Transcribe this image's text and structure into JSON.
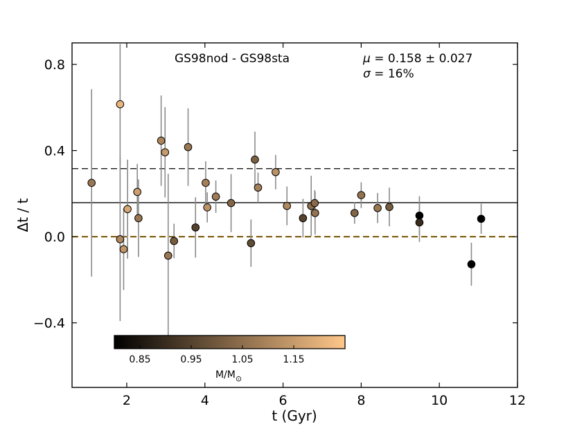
{
  "chart_data": {
    "type": "scatter",
    "annotation": "GS98nod - GS98sta",
    "stats": {
      "mu_symbol": "μ",
      "mu_text": " = 0.158 ± 0.027",
      "sigma_symbol": "σ",
      "sigma_text": " = 16%"
    },
    "xlabel": "t (Gyr)",
    "ylabel": "Δt / t",
    "xlim": [
      0.6,
      12.0
    ],
    "ylim": [
      -0.7,
      0.9
    ],
    "xticks": [
      2,
      4,
      6,
      8,
      10,
      12
    ],
    "yticks": [
      -0.4,
      0.0,
      0.4,
      0.8
    ],
    "ytick_labels": [
      "−0.4",
      "0.0",
      "0.4",
      "0.8"
    ],
    "lines": {
      "mean": 0.158,
      "mean_plus_sigma": 0.316,
      "zero": 0.0
    },
    "colorbar": {
      "label": "M/M",
      "label_symbol": "⊙",
      "range": [
        0.8,
        1.25
      ],
      "ticks": [
        0.85,
        0.95,
        1.05,
        1.15
      ],
      "tick_labels": [
        "0.85",
        "0.95",
        "1.05",
        "1.15"
      ],
      "color_low": "#000000",
      "color_high": "#ffc78a"
    },
    "points": [
      {
        "x": 1.1,
        "y": 0.25,
        "err": 0.435,
        "mass": 1.07
      },
      {
        "x": 1.83,
        "y": 0.615,
        "err": 0.28,
        "mass": 1.21
      },
      {
        "x": 1.83,
        "y": -0.012,
        "err": 0.38,
        "mass": 1.11
      },
      {
        "x": 1.92,
        "y": -0.058,
        "err": 0.19,
        "mass": 1.14
      },
      {
        "x": 2.02,
        "y": 0.128,
        "err": 0.23,
        "mass": 1.18
      },
      {
        "x": 2.27,
        "y": 0.208,
        "err": 0.13,
        "mass": 1.16
      },
      {
        "x": 2.3,
        "y": 0.086,
        "err": 0.18,
        "mass": 1.07
      },
      {
        "x": 2.88,
        "y": 0.446,
        "err": 0.21,
        "mass": 1.1
      },
      {
        "x": 2.98,
        "y": 0.392,
        "err": 0.21,
        "mass": 1.15
      },
      {
        "x": 3.06,
        "y": -0.088,
        "err": 0.38,
        "mass": 1.07
      },
      {
        "x": 3.21,
        "y": -0.02,
        "err": 0.08,
        "mass": 1.01
      },
      {
        "x": 3.57,
        "y": 0.416,
        "err": 0.18,
        "mass": 1.07
      },
      {
        "x": 3.76,
        "y": 0.043,
        "err": 0.14,
        "mass": 0.95
      },
      {
        "x": 4.02,
        "y": 0.25,
        "err": 0.1,
        "mass": 1.09
      },
      {
        "x": 4.06,
        "y": 0.136,
        "err": 0.07,
        "mass": 1.13
      },
      {
        "x": 4.28,
        "y": 0.186,
        "err": 0.075,
        "mass": 1.08
      },
      {
        "x": 4.67,
        "y": 0.156,
        "err": 0.135,
        "mass": 1.03
      },
      {
        "x": 5.18,
        "y": -0.03,
        "err": 0.11,
        "mass": 0.97
      },
      {
        "x": 5.28,
        "y": 0.358,
        "err": 0.13,
        "mass": 1.02
      },
      {
        "x": 5.36,
        "y": 0.228,
        "err": 0.07,
        "mass": 1.09
      },
      {
        "x": 5.81,
        "y": 0.3,
        "err": 0.08,
        "mass": 1.13
      },
      {
        "x": 6.1,
        "y": 0.143,
        "err": 0.09,
        "mass": 1.11
      },
      {
        "x": 6.51,
        "y": 0.086,
        "err": 0.09,
        "mass": 0.95
      },
      {
        "x": 6.72,
        "y": 0.143,
        "err": 0.14,
        "mass": 1.05
      },
      {
        "x": 6.81,
        "y": 0.156,
        "err": 0.06,
        "mass": 1.04
      },
      {
        "x": 6.82,
        "y": 0.11,
        "err": 0.1,
        "mass": 1.06
      },
      {
        "x": 7.83,
        "y": 0.11,
        "err": 0.05,
        "mass": 1.03
      },
      {
        "x": 8.0,
        "y": 0.193,
        "err": 0.06,
        "mass": 1.06
      },
      {
        "x": 8.42,
        "y": 0.133,
        "err": 0.07,
        "mass": 1.07
      },
      {
        "x": 8.72,
        "y": 0.138,
        "err": 0.09,
        "mass": 1.01
      },
      {
        "x": 9.49,
        "y": 0.098,
        "err": 0.09,
        "mass": 0.8
      },
      {
        "x": 9.49,
        "y": 0.066,
        "err": 0.09,
        "mass": 0.9
      },
      {
        "x": 10.82,
        "y": -0.128,
        "err": 0.1,
        "mass": 0.8
      },
      {
        "x": 11.07,
        "y": 0.083,
        "err": 0.07,
        "mass": 0.8
      }
    ]
  }
}
